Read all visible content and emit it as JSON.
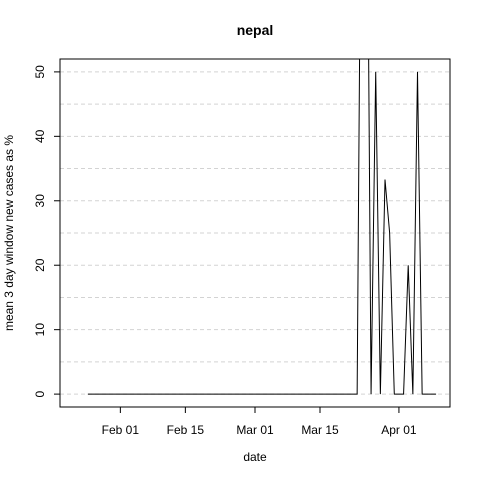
{
  "chart_data": {
    "type": "line",
    "title": "nepal",
    "xlabel": "date",
    "ylabel": "mean  3  day window new cases as %",
    "x_ticks": [
      "2020-02-01",
      "2020-02-15",
      "2020-03-01",
      "2020-03-15",
      "2020-04-01"
    ],
    "x_tick_labels": [
      "Feb 01",
      "Feb 15",
      "Mar 01",
      "Mar 15",
      "Apr 01"
    ],
    "y_ticks": [
      0,
      10,
      20,
      30,
      40,
      50
    ],
    "xlim": [
      "2020-01-19",
      "2020-04-12"
    ],
    "ylim": [
      -2,
      52
    ],
    "grid": true,
    "grid_style": "dashed",
    "line_color": "#000000",
    "series": [
      {
        "x": [
          "2020-01-25",
          "2020-03-23",
          "2020-03-24",
          "2020-03-25",
          "2020-03-26",
          "2020-03-27",
          "2020-03-28",
          "2020-03-29",
          "2020-03-30",
          "2020-03-31",
          "2020-04-01",
          "2020-04-02",
          "2020-04-03",
          "2020-04-04",
          "2020-04-05",
          "2020-04-06",
          "2020-04-07",
          "2020-04-08",
          "2020-04-09"
        ],
        "y": [
          0,
          0,
          100,
          100,
          0,
          50,
          0,
          33.3,
          25,
          0,
          0,
          0,
          20,
          0,
          50,
          0,
          0,
          0,
          0
        ]
      }
    ]
  }
}
